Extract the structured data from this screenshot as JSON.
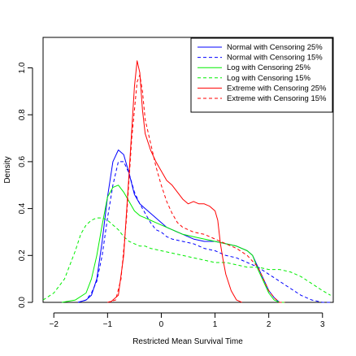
{
  "chart_data": {
    "type": "line",
    "title": "",
    "xlabel": "Restricted Mean Survival Time",
    "ylabel": "Density",
    "xlim": [
      -2.2,
      3.2
    ],
    "ylim": [
      0,
      1.13
    ],
    "xticks": [
      -2,
      -1,
      0,
      1,
      2,
      3
    ],
    "yticks": [
      0.0,
      0.2,
      0.4,
      0.6,
      0.8,
      1.0
    ],
    "xtick_labels": [
      "−2",
      "−1",
      "0",
      "1",
      "2",
      "3"
    ],
    "ytick_labels": [
      "0.0",
      "0.2",
      "0.4",
      "0.6",
      "0.8",
      "1.0"
    ],
    "grid": false,
    "legend_position": "top-right",
    "series": [
      {
        "name": "Normal with Censoring 25%",
        "color": "#0000ff",
        "dash": "solid",
        "points": [
          [
            -1.55,
            0.0
          ],
          [
            -1.4,
            0.01
          ],
          [
            -1.3,
            0.03
          ],
          [
            -1.2,
            0.1
          ],
          [
            -1.1,
            0.26
          ],
          [
            -1.0,
            0.45
          ],
          [
            -0.9,
            0.6
          ],
          [
            -0.8,
            0.65
          ],
          [
            -0.7,
            0.63
          ],
          [
            -0.6,
            0.55
          ],
          [
            -0.5,
            0.46
          ],
          [
            -0.4,
            0.42
          ],
          [
            -0.3,
            0.4
          ],
          [
            -0.2,
            0.38
          ],
          [
            -0.1,
            0.36
          ],
          [
            0.0,
            0.34
          ],
          [
            0.1,
            0.32
          ],
          [
            0.2,
            0.31
          ],
          [
            0.3,
            0.3
          ],
          [
            0.4,
            0.29
          ],
          [
            0.5,
            0.28
          ],
          [
            0.6,
            0.27
          ],
          [
            0.8,
            0.26
          ],
          [
            1.0,
            0.26
          ],
          [
            1.2,
            0.25
          ],
          [
            1.4,
            0.24
          ],
          [
            1.6,
            0.22
          ],
          [
            1.7,
            0.2
          ],
          [
            1.8,
            0.15
          ],
          [
            1.9,
            0.1
          ],
          [
            2.0,
            0.05
          ],
          [
            2.1,
            0.02
          ],
          [
            2.2,
            0.0
          ],
          [
            2.3,
            0.0
          ]
        ]
      },
      {
        "name": "Normal with Censoring 15%",
        "color": "#0000ff",
        "dash": "4,3",
        "points": [
          [
            -1.55,
            0.0
          ],
          [
            -1.4,
            0.01
          ],
          [
            -1.3,
            0.04
          ],
          [
            -1.2,
            0.09
          ],
          [
            -1.1,
            0.2
          ],
          [
            -1.0,
            0.36
          ],
          [
            -0.9,
            0.5
          ],
          [
            -0.8,
            0.6
          ],
          [
            -0.7,
            0.6
          ],
          [
            -0.6,
            0.55
          ],
          [
            -0.5,
            0.47
          ],
          [
            -0.4,
            0.42
          ],
          [
            -0.3,
            0.38
          ],
          [
            -0.2,
            0.34
          ],
          [
            -0.1,
            0.31
          ],
          [
            0.0,
            0.3
          ],
          [
            0.1,
            0.28
          ],
          [
            0.2,
            0.27
          ],
          [
            0.4,
            0.26
          ],
          [
            0.6,
            0.25
          ],
          [
            0.8,
            0.23
          ],
          [
            1.0,
            0.22
          ],
          [
            1.2,
            0.2
          ],
          [
            1.4,
            0.19
          ],
          [
            1.6,
            0.17
          ],
          [
            1.8,
            0.15
          ],
          [
            2.0,
            0.12
          ],
          [
            2.2,
            0.09
          ],
          [
            2.4,
            0.06
          ],
          [
            2.6,
            0.03
          ],
          [
            2.8,
            0.01
          ],
          [
            3.0,
            0.0
          ],
          [
            3.15,
            0.0
          ]
        ]
      },
      {
        "name": "Log with Censoring 25%",
        "color": "#00ee00",
        "dash": "solid",
        "points": [
          [
            -1.85,
            0.0
          ],
          [
            -1.6,
            0.01
          ],
          [
            -1.4,
            0.04
          ],
          [
            -1.3,
            0.1
          ],
          [
            -1.2,
            0.2
          ],
          [
            -1.1,
            0.33
          ],
          [
            -1.0,
            0.45
          ],
          [
            -0.9,
            0.49
          ],
          [
            -0.8,
            0.5
          ],
          [
            -0.7,
            0.47
          ],
          [
            -0.6,
            0.43
          ],
          [
            -0.5,
            0.39
          ],
          [
            -0.4,
            0.37
          ],
          [
            -0.3,
            0.36
          ],
          [
            -0.2,
            0.35
          ],
          [
            -0.1,
            0.34
          ],
          [
            0.0,
            0.33
          ],
          [
            0.1,
            0.32
          ],
          [
            0.2,
            0.31
          ],
          [
            0.4,
            0.29
          ],
          [
            0.6,
            0.28
          ],
          [
            0.8,
            0.27
          ],
          [
            1.0,
            0.26
          ],
          [
            1.2,
            0.25
          ],
          [
            1.4,
            0.24
          ],
          [
            1.6,
            0.22
          ],
          [
            1.7,
            0.2
          ],
          [
            1.8,
            0.14
          ],
          [
            1.9,
            0.09
          ],
          [
            2.0,
            0.04
          ],
          [
            2.1,
            0.01
          ],
          [
            2.2,
            0.0
          ],
          [
            2.3,
            0.0
          ]
        ]
      },
      {
        "name": "Log with Censoring 15%",
        "color": "#00ee00",
        "dash": "4,3",
        "points": [
          [
            -2.2,
            0.01
          ],
          [
            -2.0,
            0.04
          ],
          [
            -1.8,
            0.1
          ],
          [
            -1.6,
            0.22
          ],
          [
            -1.5,
            0.29
          ],
          [
            -1.4,
            0.33
          ],
          [
            -1.3,
            0.35
          ],
          [
            -1.2,
            0.36
          ],
          [
            -1.1,
            0.36
          ],
          [
            -1.0,
            0.35
          ],
          [
            -0.9,
            0.33
          ],
          [
            -0.8,
            0.31
          ],
          [
            -0.7,
            0.28
          ],
          [
            -0.6,
            0.26
          ],
          [
            -0.5,
            0.25
          ],
          [
            -0.4,
            0.24
          ],
          [
            -0.3,
            0.24
          ],
          [
            -0.2,
            0.23
          ],
          [
            0.0,
            0.22
          ],
          [
            0.2,
            0.21
          ],
          [
            0.4,
            0.2
          ],
          [
            0.6,
            0.19
          ],
          [
            0.8,
            0.18
          ],
          [
            1.0,
            0.17
          ],
          [
            1.2,
            0.17
          ],
          [
            1.4,
            0.16
          ],
          [
            1.6,
            0.15
          ],
          [
            1.8,
            0.15
          ],
          [
            2.0,
            0.14
          ],
          [
            2.2,
            0.14
          ],
          [
            2.4,
            0.13
          ],
          [
            2.6,
            0.11
          ],
          [
            2.8,
            0.08
          ],
          [
            3.0,
            0.05
          ],
          [
            3.15,
            0.03
          ]
        ]
      },
      {
        "name": "Extreme with Censoring 25%",
        "color": "#ff0000",
        "dash": "solid",
        "points": [
          [
            -0.95,
            0.0
          ],
          [
            -0.8,
            0.03
          ],
          [
            -0.7,
            0.2
          ],
          [
            -0.6,
            0.55
          ],
          [
            -0.5,
            0.92
          ],
          [
            -0.45,
            1.03
          ],
          [
            -0.4,
            0.98
          ],
          [
            -0.35,
            0.82
          ],
          [
            -0.3,
            0.72
          ],
          [
            -0.2,
            0.65
          ],
          [
            -0.1,
            0.6
          ],
          [
            0.0,
            0.56
          ],
          [
            0.1,
            0.52
          ],
          [
            0.2,
            0.5
          ],
          [
            0.3,
            0.47
          ],
          [
            0.4,
            0.44
          ],
          [
            0.5,
            0.42
          ],
          [
            0.6,
            0.43
          ],
          [
            0.7,
            0.42
          ],
          [
            0.8,
            0.42
          ],
          [
            0.9,
            0.41
          ],
          [
            1.0,
            0.39
          ],
          [
            1.05,
            0.35
          ],
          [
            1.1,
            0.25
          ],
          [
            1.15,
            0.18
          ],
          [
            1.2,
            0.12
          ],
          [
            1.3,
            0.05
          ],
          [
            1.4,
            0.01
          ],
          [
            1.5,
            0.0
          ]
        ]
      },
      {
        "name": "Extreme with Censoring 15%",
        "color": "#ff0000",
        "dash": "4,3",
        "points": [
          [
            -1.0,
            0.0
          ],
          [
            -0.85,
            0.01
          ],
          [
            -0.75,
            0.1
          ],
          [
            -0.65,
            0.35
          ],
          [
            -0.55,
            0.7
          ],
          [
            -0.45,
            0.94
          ],
          [
            -0.4,
            0.97
          ],
          [
            -0.35,
            0.9
          ],
          [
            -0.3,
            0.78
          ],
          [
            -0.2,
            0.68
          ],
          [
            -0.1,
            0.58
          ],
          [
            0.0,
            0.5
          ],
          [
            0.1,
            0.43
          ],
          [
            0.2,
            0.38
          ],
          [
            0.3,
            0.34
          ],
          [
            0.4,
            0.32
          ],
          [
            0.5,
            0.31
          ],
          [
            0.6,
            0.3
          ],
          [
            0.8,
            0.29
          ],
          [
            1.0,
            0.27
          ],
          [
            1.2,
            0.25
          ],
          [
            1.4,
            0.23
          ],
          [
            1.6,
            0.2
          ],
          [
            1.8,
            0.15
          ],
          [
            1.9,
            0.1
          ],
          [
            2.0,
            0.05
          ],
          [
            2.1,
            0.02
          ],
          [
            2.2,
            0.0
          ],
          [
            2.3,
            0.0
          ]
        ]
      }
    ]
  }
}
